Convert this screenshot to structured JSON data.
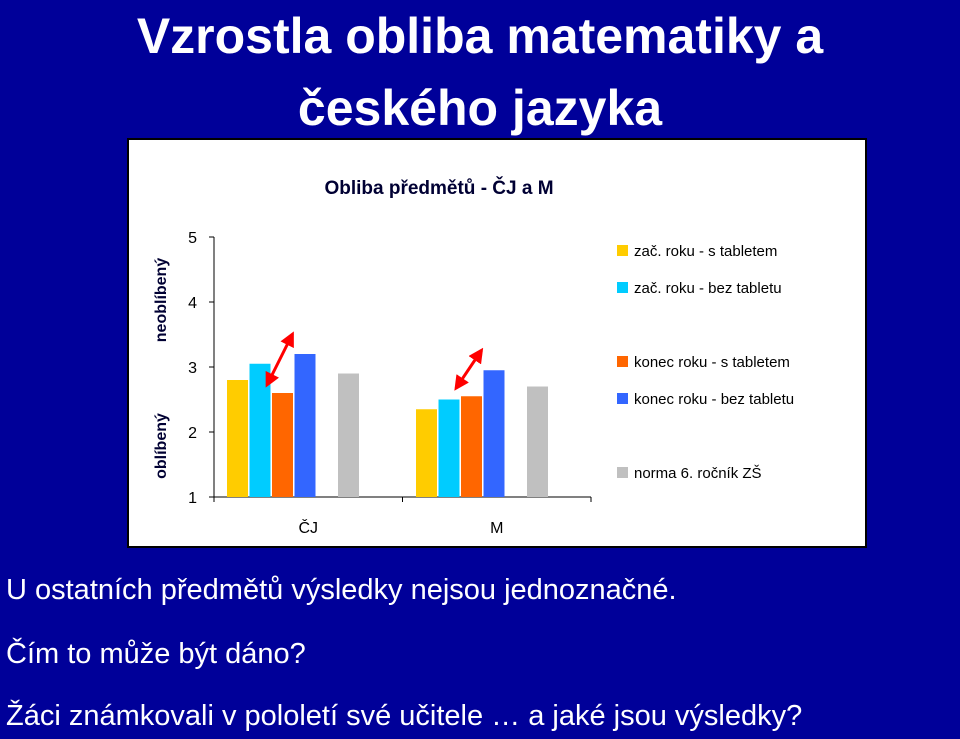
{
  "slide": {
    "title_line1": "Vzrostla obliba matematiky a",
    "title_line2": "českého jazyka",
    "text1": "U ostatních předmětů výsledky nejsou jednoznačné.",
    "text2": "Čím to může být dáno?",
    "text3": "Žáci známkovali v pololetí své učitele … a jaké jsou výsledky?"
  },
  "colors": {
    "background": "#000099",
    "arrow": "#ff0000"
  },
  "chart_data": {
    "type": "bar",
    "title": "Obliba předmětů - ČJ a M",
    "categories": [
      "ČJ",
      "M"
    ],
    "ylim": [
      1,
      5
    ],
    "yticks": [
      "1",
      "2",
      "3",
      "4",
      "5"
    ],
    "side_labels": {
      "top": "neoblíbený",
      "bottom": "oblíbený"
    },
    "series": [
      {
        "name": "zač. roku  - s tabletem",
        "color": "#ffcc00",
        "values": [
          2.8,
          2.35
        ]
      },
      {
        "name": "zač. roku - bez tabletu",
        "color": "#00ccff",
        "values": [
          3.05,
          2.5
        ]
      },
      {
        "name": "konec roku  - s tabletem",
        "color": "#ff6600",
        "values": [
          2.6,
          2.55
        ]
      },
      {
        "name": "konec roku - bez tabletu",
        "color": "#3366ff",
        "values": [
          3.2,
          2.95
        ]
      },
      {
        "name": "norma 6. ročník ZŠ",
        "color": "#c0c0c0",
        "values": [
          2.9,
          2.7
        ]
      }
    ],
    "legend_position": "right",
    "grid": false,
    "annotations": "red double-headed arrows between the orange and blue bars in each group"
  }
}
